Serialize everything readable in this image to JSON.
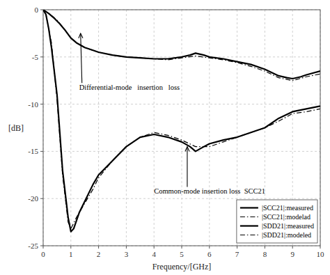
{
  "chart_data": {
    "type": "line",
    "xlabel": "Frequency/[GHz]",
    "ylabel": "[dB]",
    "xlim": [
      0,
      10
    ],
    "ylim": [
      -25,
      0
    ],
    "xticks": [
      0,
      1,
      2,
      3,
      4,
      5,
      6,
      7,
      8,
      9,
      10
    ],
    "yticks": [
      0,
      -5,
      -10,
      -15,
      -20,
      -25
    ],
    "grid": true,
    "legend": "lower right",
    "series": [
      {
        "name": "|SCC21|:measured",
        "color": "#000000",
        "line_style": "solid",
        "x": [
          0,
          0.1,
          0.2,
          0.3,
          0.5,
          0.7,
          0.9,
          1.0,
          1.1,
          1.3,
          1.5,
          1.8,
          2.0,
          2.5,
          3.0,
          3.5,
          4.0,
          4.5,
          5.0,
          5.3,
          5.5,
          5.8,
          6.0,
          6.5,
          7.0,
          7.5,
          8.0,
          8.5,
          9.0,
          9.5,
          10.0
        ],
        "values": [
          0,
          -0.5,
          -2,
          -4,
          -9,
          -17,
          -22,
          -23.5,
          -23.2,
          -21.5,
          -20.3,
          -18.5,
          -17.5,
          -16.0,
          -14.5,
          -13.5,
          -13.2,
          -13.5,
          -14.0,
          -14.5,
          -15.0,
          -14.5,
          -14.2,
          -13.8,
          -13.5,
          -13.0,
          -12.5,
          -11.5,
          -10.8,
          -10.5,
          -10.2
        ]
      },
      {
        "name": "|SCC21|:modelad",
        "color": "#000000",
        "line_style": "dashdot",
        "x": [
          0,
          0.1,
          0.3,
          0.5,
          0.7,
          0.9,
          1.0,
          1.2,
          1.5,
          1.8,
          2.0,
          2.5,
          3.0,
          3.5,
          4.0,
          4.5,
          5.0,
          5.5,
          6.0,
          6.5,
          7.0,
          7.5,
          8.0,
          8.5,
          9.0,
          9.5,
          10.0
        ],
        "values": [
          0,
          -0.5,
          -3.5,
          -9.5,
          -17.5,
          -22.5,
          -23.2,
          -22.0,
          -20.5,
          -19.0,
          -17.8,
          -16.0,
          -14.5,
          -13.5,
          -13.0,
          -13.3,
          -13.8,
          -14.5,
          -14.5,
          -14.0,
          -13.5,
          -13.0,
          -12.5,
          -11.8,
          -11.0,
          -10.8,
          -10.5
        ]
      },
      {
        "name": "|SDD21|:measured",
        "color": "#000000",
        "line_style": "solid",
        "x": [
          0,
          0.05,
          0.1,
          0.2,
          0.4,
          0.6,
          0.8,
          1.0,
          1.2,
          1.5,
          1.8,
          2.0,
          2.5,
          3.0,
          3.5,
          4.0,
          4.5,
          5.0,
          5.3,
          5.5,
          5.8,
          6.0,
          6.5,
          7.0,
          7.5,
          8.0,
          8.5,
          8.8,
          9.0,
          9.3,
          9.5,
          10.0
        ],
        "values": [
          -0.05,
          -0.1,
          -0.2,
          -0.4,
          -0.9,
          -1.5,
          -2.2,
          -3.0,
          -3.5,
          -4.0,
          -4.3,
          -4.5,
          -4.8,
          -5.0,
          -5.1,
          -5.2,
          -5.2,
          -5.0,
          -4.8,
          -4.6,
          -4.8,
          -5.0,
          -5.2,
          -5.5,
          -5.8,
          -6.3,
          -7.0,
          -7.2,
          -7.3,
          -7.1,
          -6.9,
          -6.5
        ]
      },
      {
        "name": "|SDD21|:modeled",
        "color": "#000000",
        "line_style": "dashdot",
        "x": [
          0,
          0.1,
          0.3,
          0.5,
          0.7,
          1.0,
          1.2,
          1.5,
          1.8,
          2.0,
          2.5,
          3.0,
          3.5,
          4.0,
          4.5,
          5.0,
          5.5,
          6.0,
          6.5,
          7.0,
          7.5,
          8.0,
          8.5,
          9.0,
          9.5,
          10.0
        ],
        "values": [
          -0.05,
          -0.2,
          -0.6,
          -1.1,
          -1.8,
          -3.0,
          -3.5,
          -4.0,
          -4.3,
          -4.5,
          -4.8,
          -5.0,
          -5.1,
          -5.2,
          -5.3,
          -5.1,
          -4.9,
          -5.1,
          -5.3,
          -5.6,
          -6.0,
          -6.5,
          -7.2,
          -7.5,
          -7.1,
          -6.8
        ]
      }
    ],
    "annotations": [
      {
        "text": "Differential-mode   insertion   loss",
        "x": 1.35,
        "y": -2.5,
        "text_x": 1.3,
        "text_y": -8.5
      },
      {
        "text": "Common-mode insertion loss  SCC21",
        "x": 5.2,
        "y": -14.5,
        "text_x": 4.0,
        "text_y": -19.5
      }
    ]
  }
}
